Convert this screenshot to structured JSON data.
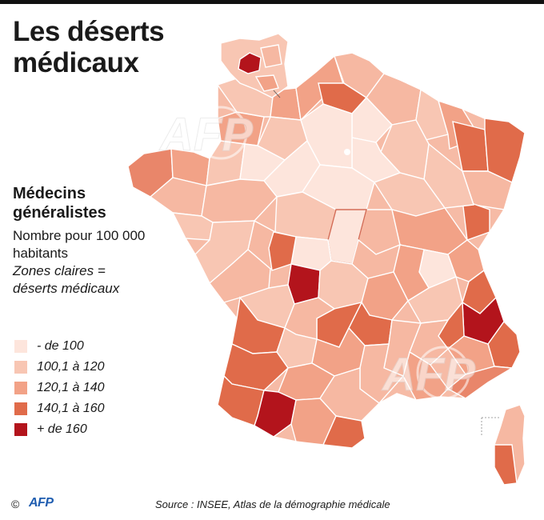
{
  "title": "Les déserts médicaux",
  "legend": {
    "title": "Médecins généralistes",
    "subtitle": "Nombre pour 100 000 habitants",
    "note": "Zones claires = déserts médicaux",
    "items": [
      {
        "label": "- de 100",
        "color": "#fde5dc"
      },
      {
        "label": "100,1 à 120",
        "color": "#f8c6b3"
      },
      {
        "label": "120,1 à 140",
        "color": "#f2a287"
      },
      {
        "label": "140,1 à 160",
        "color": "#e06b4a"
      },
      {
        "label": "+ de 160",
        "color": "#b3141c"
      }
    ]
  },
  "watermark": "AFP",
  "footer": {
    "copyright": "©",
    "logo": "AFP",
    "source": "Source : INSEE, Atlas de la démographie médicale"
  }
}
